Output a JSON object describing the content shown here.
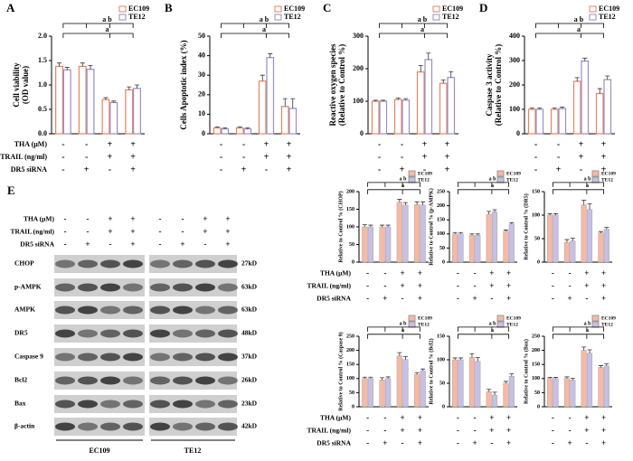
{
  "treatment_rows": [
    "THA (μM)",
    "TRAIL (ng/ml)",
    "DR5 siRNA"
  ],
  "chart_data": [
    {
      "type": "bar",
      "panel": "A",
      "bar_style": "outline",
      "ylabel": [
        "Cell viability",
        "(OD value)"
      ],
      "ylim": [
        0,
        2.0
      ],
      "yticks": [
        {
          "value": 0,
          "label": "0.0"
        },
        {
          "value": 0.5,
          "label": "0.5"
        },
        {
          "value": 1.0,
          "label": "1.0"
        },
        {
          "value": 1.5,
          "label": "1.5"
        },
        {
          "value": 2.0,
          "label": "2.0"
        }
      ],
      "series": [
        {
          "name": "EC109",
          "color": "#e8845c",
          "values": [
            1.38,
            1.38,
            0.7,
            0.9
          ],
          "errors": [
            0.07,
            0.07,
            0.04,
            0.06
          ]
        },
        {
          "name": "TE12",
          "color": "#9a8cc8",
          "values": [
            1.31,
            1.32,
            0.64,
            0.93
          ],
          "errors": [
            0.05,
            0.08,
            0.03,
            0.07
          ]
        }
      ],
      "annotations": [
        "a b",
        "a"
      ],
      "signs": [
        [
          "-",
          "-",
          "+",
          "+"
        ],
        [
          "-",
          "-",
          "+",
          "+"
        ],
        [
          "-",
          "+",
          "-",
          "+"
        ]
      ]
    },
    {
      "type": "bar",
      "panel": "B",
      "bar_style": "outline",
      "ylabel": [
        "Cells Apoptotic index (%)"
      ],
      "ylim": [
        0,
        50
      ],
      "yticks": [
        0,
        10,
        20,
        30,
        40,
        50
      ],
      "series": [
        {
          "name": "EC109",
          "color": "#e8845c",
          "values": [
            3,
            3,
            27,
            14
          ],
          "errors": [
            0.6,
            0.6,
            3,
            4
          ]
        },
        {
          "name": "TE12",
          "color": "#9a8cc8",
          "values": [
            2.5,
            2.5,
            39,
            13
          ],
          "errors": [
            0.5,
            0.5,
            2,
            5
          ]
        }
      ],
      "annotations": [
        "a b",
        "a"
      ],
      "signs": [
        [
          "-",
          "-",
          "+",
          "+"
        ],
        [
          "-",
          "-",
          "+",
          "+"
        ],
        [
          "-",
          "+",
          "-",
          "+"
        ]
      ]
    },
    {
      "type": "bar",
      "panel": "C",
      "bar_style": "outline",
      "ylabel": [
        "Reactive oxygen species",
        "(Relative to Control %)"
      ],
      "ylim": [
        0,
        300
      ],
      "yticks": [
        0,
        100,
        200,
        300
      ],
      "series": [
        {
          "name": "EC109",
          "color": "#e8845c",
          "values": [
            100,
            105,
            190,
            155
          ],
          "errors": [
            3,
            5,
            20,
            10
          ]
        },
        {
          "name": "TE12",
          "color": "#9a8cc8",
          "values": [
            100,
            103,
            228,
            173
          ],
          "errors": [
            3,
            5,
            20,
            18
          ]
        }
      ],
      "annotations": [
        "a b",
        "a"
      ],
      "signs": [
        [
          "-",
          "-",
          "+",
          "+"
        ],
        [
          "-",
          "-",
          "+",
          "+"
        ],
        [
          "-",
          "+",
          "-",
          "+"
        ]
      ]
    },
    {
      "type": "bar",
      "panel": "D",
      "bar_style": "outline",
      "ylabel": [
        "Caspase 3 activity",
        "(Relative to Control %)"
      ],
      "ylim": [
        0,
        400
      ],
      "yticks": [
        0,
        100,
        200,
        300,
        400
      ],
      "series": [
        {
          "name": "EC109",
          "color": "#e8845c",
          "values": [
            100,
            100,
            215,
            165
          ],
          "errors": [
            5,
            5,
            15,
            20
          ]
        },
        {
          "name": "TE12",
          "color": "#9a8cc8",
          "values": [
            100,
            103,
            298,
            222
          ],
          "errors": [
            5,
            6,
            12,
            15
          ]
        }
      ],
      "annotations": [
        "a b",
        "a"
      ],
      "signs": [
        [
          "-",
          "-",
          "+",
          "+"
        ],
        [
          "-",
          "-",
          "+",
          "+"
        ],
        [
          "-",
          "+",
          "-",
          "+"
        ]
      ]
    },
    {
      "type": "bar",
      "bar_style": "filled",
      "ylabel": [
        "Relative to Control % (CHOP)"
      ],
      "ylim": [
        0,
        200
      ],
      "yticks": [
        0,
        50,
        100,
        150,
        200
      ],
      "series": [
        {
          "name": "EC109",
          "color": "#f6b9a4",
          "values": [
            100,
            100,
            170,
            163
          ],
          "errors": [
            6,
            5,
            8,
            8
          ]
        },
        {
          "name": "TE12",
          "color": "#c7bfe5",
          "values": [
            100,
            100,
            162,
            162
          ],
          "errors": [
            5,
            5,
            7,
            9
          ]
        }
      ],
      "annotations": [
        "a b",
        "a"
      ],
      "signs": [
        [
          "-",
          "-",
          "+",
          "+"
        ],
        [
          "-",
          "-",
          "+",
          "+"
        ],
        [
          "-",
          "+",
          "-",
          "+"
        ]
      ]
    },
    {
      "type": "bar",
      "bar_style": "filled",
      "ylabel": [
        "Relative to Control % (p-AMPK)"
      ],
      "ylim": [
        0,
        250
      ],
      "yticks": [
        0,
        50,
        100,
        150,
        200,
        250
      ],
      "series": [
        {
          "name": "EC109",
          "color": "#f6b9a4",
          "values": [
            100,
            95,
            170,
            110
          ],
          "errors": [
            5,
            5,
            10,
            4
          ]
        },
        {
          "name": "TE12",
          "color": "#c7bfe5",
          "values": [
            100,
            95,
            178,
            135
          ],
          "errors": [
            5,
            5,
            8,
            5
          ]
        }
      ],
      "annotations": [
        "a b",
        "a"
      ],
      "signs": [
        [
          "-",
          "-",
          "+",
          "+"
        ],
        [
          "-",
          "-",
          "+",
          "+"
        ],
        [
          "-",
          "+",
          "-",
          "+"
        ]
      ]
    },
    {
      "type": "bar",
      "bar_style": "filled",
      "ylabel": [
        "Relative to Control % (DR5)"
      ],
      "ylim": [
        0,
        150
      ],
      "yticks": [
        0,
        50,
        100,
        150
      ],
      "series": [
        {
          "name": "EC109",
          "color": "#f6b9a4",
          "values": [
            100,
            42,
            122,
            62
          ],
          "errors": [
            3,
            6,
            10,
            3
          ]
        },
        {
          "name": "TE12",
          "color": "#c7bfe5",
          "values": [
            100,
            45,
            112,
            70
          ],
          "errors": [
            3,
            6,
            12,
            4
          ]
        }
      ],
      "annotations": [
        "a b",
        "a"
      ],
      "signs": [
        [
          "-",
          "-",
          "+",
          "+"
        ],
        [
          "-",
          "-",
          "+",
          "+"
        ],
        [
          "-",
          "+",
          "-",
          "+"
        ]
      ]
    },
    {
      "type": "bar",
      "bar_style": "filled",
      "ylabel": [
        "Relative to Control % (Caspase 9)"
      ],
      "ylim": [
        0,
        250
      ],
      "yticks": [
        0,
        50,
        100,
        150,
        200,
        250
      ],
      "series": [
        {
          "name": "EC109",
          "color": "#f6b9a4",
          "values": [
            100,
            95,
            180,
            115
          ],
          "errors": [
            5,
            8,
            12,
            6
          ]
        },
        {
          "name": "TE12",
          "color": "#c7bfe5",
          "values": [
            100,
            100,
            168,
            128
          ],
          "errors": [
            5,
            6,
            10,
            6
          ]
        }
      ],
      "annotations": [
        "a b",
        "a"
      ],
      "signs": [
        [
          "-",
          "-",
          "+",
          "+"
        ],
        [
          "-",
          "-",
          "+",
          "+"
        ],
        [
          "-",
          "+",
          "-",
          "+"
        ]
      ]
    },
    {
      "type": "bar",
      "bar_style": "filled",
      "ylabel": [
        "Relative to Control % (Bcl2)"
      ],
      "ylim": [
        0,
        150
      ],
      "yticks": [
        0,
        50,
        100,
        150
      ],
      "series": [
        {
          "name": "EC109",
          "color": "#f6b9a4",
          "values": [
            100,
            105,
            32,
            50
          ],
          "errors": [
            4,
            8,
            5,
            4
          ]
        },
        {
          "name": "TE12",
          "color": "#c7bfe5",
          "values": [
            100,
            97,
            25,
            65
          ],
          "errors": [
            4,
            8,
            6,
            5
          ]
        }
      ],
      "annotations": [
        "a b",
        "a"
      ],
      "signs": [
        [
          "-",
          "-",
          "+",
          "+"
        ],
        [
          "-",
          "-",
          "+",
          "+"
        ],
        [
          "-",
          "+",
          "-",
          "+"
        ]
      ]
    },
    {
      "type": "bar",
      "bar_style": "filled",
      "ylabel": [
        "Relative to Control % (Bax)"
      ],
      "ylim": [
        0,
        250
      ],
      "yticks": [
        0,
        50,
        100,
        150,
        200,
        250
      ],
      "series": [
        {
          "name": "EC109",
          "color": "#f6b9a4",
          "values": [
            100,
            100,
            200,
            140
          ],
          "errors": [
            4,
            6,
            12,
            6
          ]
        },
        {
          "name": "TE12",
          "color": "#c7bfe5",
          "values": [
            100,
            95,
            190,
            145
          ],
          "errors": [
            4,
            6,
            12,
            8
          ]
        }
      ],
      "annotations": [
        "a b",
        "a"
      ],
      "signs": [
        [
          "-",
          "-",
          "+",
          "+"
        ],
        [
          "-",
          "-",
          "+",
          "+"
        ],
        [
          "-",
          "+",
          "-",
          "+"
        ]
      ]
    }
  ],
  "blot": {
    "panel": "E",
    "proteins": [
      "CHOP",
      "p-AMPK",
      "AMPK",
      "DR5",
      "Caspase 9",
      "Bcl2",
      "Bax",
      "β-actin"
    ],
    "sizes": [
      "27kD",
      "63kD",
      "63kD",
      "48kD",
      "37kD",
      "26kD",
      "23kD",
      "42kD"
    ],
    "cell_lines": [
      "EC109",
      "TE12"
    ],
    "signs": [
      [
        "-",
        "-",
        "+",
        "+",
        "-",
        "-",
        "+",
        "+"
      ],
      [
        "-",
        "-",
        "+",
        "+",
        "-",
        "-",
        "+",
        "+"
      ],
      [
        "-",
        "+",
        "-",
        "+",
        "-",
        "+",
        "-",
        "+"
      ]
    ]
  }
}
